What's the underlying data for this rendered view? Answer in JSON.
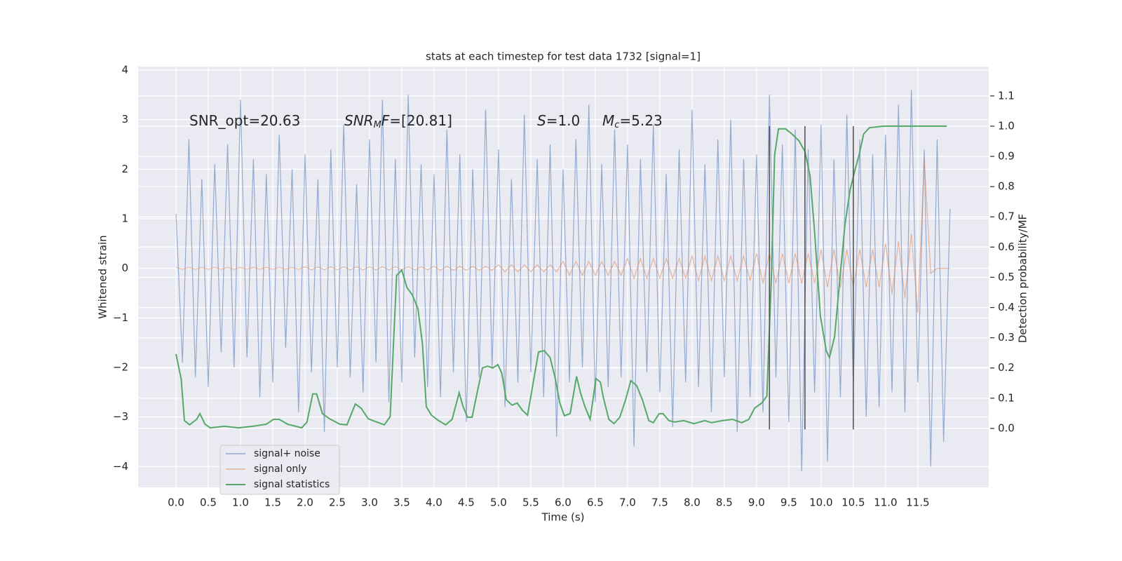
{
  "chart_data": {
    "type": "line",
    "title": "stats at each timestep for test data 1732 [signal=1]",
    "xlabel": "Time (s)",
    "ylabel": "Whitened strain",
    "y2label": "Detection probability/MF",
    "xlim": [
      -0.587,
      12.6
    ],
    "ylim": [
      -4.42,
      4.07
    ],
    "y2lim": [
      -0.195,
      1.197
    ],
    "xticks": [
      {
        "value": 0,
        "label": "0.0"
      },
      0.5,
      {
        "value": 1,
        "label": "1.0"
      },
      1.5,
      {
        "value": 2,
        "label": "2.0"
      },
      2.5,
      {
        "value": 3,
        "label": "3.0"
      },
      3.5,
      {
        "value": 4,
        "label": "4.0"
      },
      4.5,
      {
        "value": 5,
        "label": "5.0"
      },
      5.5,
      {
        "value": 6,
        "label": "6.0"
      },
      6.5,
      {
        "value": 7,
        "label": "7.0"
      },
      7.5,
      {
        "value": 8,
        "label": "8.0"
      },
      8.5,
      {
        "value": 9,
        "label": "9.0"
      },
      9.5,
      {
        "value": 10,
        "label": "10.0"
      },
      10.5,
      {
        "value": 11,
        "label": "11.0"
      },
      11.5
    ],
    "yticks": [
      {
        "value": -4,
        "label": "−4"
      },
      {
        "value": -3,
        "label": "−3"
      },
      {
        "value": -2,
        "label": "−2"
      },
      {
        "value": -1,
        "label": "−1"
      },
      0,
      1,
      2,
      3,
      4
    ],
    "y2ticks": [
      {
        "value": 0,
        "label": "0.0"
      },
      0.1,
      0.2,
      0.3,
      0.4,
      0.5,
      0.6,
      0.7,
      0.8,
      0.9,
      {
        "value": 1,
        "label": "1.0"
      },
      1.1
    ],
    "grid": true,
    "legend": "lower left",
    "x": [
      0,
      0.1,
      0.2,
      0.3,
      0.4,
      0.5,
      0.6,
      0.7,
      0.8,
      0.9,
      1,
      1.1,
      1.2,
      1.3,
      1.4,
      1.5,
      1.6,
      1.7,
      1.8,
      1.9,
      2,
      2.1,
      2.2,
      2.3,
      2.4,
      2.5,
      2.6,
      2.7,
      2.8,
      2.9,
      3,
      3.1,
      3.2,
      3.3,
      3.4,
      3.5,
      3.6,
      3.7,
      3.8,
      3.9,
      4,
      4.1,
      4.2,
      4.3,
      4.4,
      4.5,
      4.6,
      4.7,
      4.8,
      4.9,
      5,
      5.1,
      5.2,
      5.3,
      5.4,
      5.5,
      5.6,
      5.7,
      5.8,
      5.9,
      6,
      6.1,
      6.2,
      6.3,
      6.4,
      6.5,
      6.6,
      6.7,
      6.8,
      6.9,
      7,
      7.1,
      7.2,
      7.3,
      7.4,
      7.5,
      7.6,
      7.7,
      7.8,
      7.9,
      8,
      8.1,
      8.2,
      8.3,
      8.4,
      8.5,
      8.6,
      8.7,
      8.8,
      8.9,
      9,
      9.1,
      9.2,
      9.3,
      9.4,
      9.5,
      9.6,
      9.7,
      9.8,
      9.9,
      10,
      10.1,
      10.2,
      10.3,
      10.4,
      10.5,
      10.6,
      10.7,
      10.8,
      10.9,
      11,
      11.1,
      11.2,
      11.3,
      11.4,
      11.5,
      11.6,
      11.7,
      11.8,
      11.9,
      12
    ],
    "series": [
      {
        "name": "signal+ noise",
        "color": "#4c72b0",
        "values": [
          1.1,
          -1.9,
          2.6,
          -2.2,
          1.8,
          -2.4,
          2.1,
          -1.7,
          2.5,
          -2.0,
          3.4,
          -1.8,
          2.2,
          -2.6,
          1.9,
          -2.3,
          2.7,
          -1.6,
          2.0,
          -2.9,
          2.3,
          -2.1,
          1.8,
          -3.3,
          2.4,
          -2.0,
          2.9,
          -2.2,
          1.7,
          -2.5,
          2.6,
          -1.9,
          3.4,
          -2.7,
          2.2,
          -2.3,
          3.5,
          -1.8,
          2.1,
          -2.4,
          1.9,
          -2.6,
          2.8,
          -2.1,
          2.3,
          -3.1,
          2.0,
          -2.2,
          3.2,
          -2.0,
          2.4,
          -2.8,
          1.8,
          -2.3,
          3.1,
          -2.1,
          2.2,
          -2.6,
          2.5,
          -3.4,
          2.0,
          -2.3,
          2.6,
          -2.0,
          3.3,
          -2.7,
          2.1,
          -2.4,
          2.8,
          -2.2,
          2.5,
          -3.6,
          2.2,
          -2.1,
          2.9,
          -2.5,
          1.9,
          -3.2,
          2.4,
          -2.3,
          3.2,
          -2.4,
          2.1,
          -2.9,
          2.6,
          -2.2,
          3.0,
          -3.3,
          2.2,
          -2.6,
          2.3,
          -2.9,
          3.5,
          -2.2,
          2.5,
          -3.1,
          2.8,
          -4.1,
          2.4,
          -2.5,
          2.9,
          -3.9,
          2.2,
          -2.6,
          3.1,
          -2.4,
          2.6,
          -3.0,
          2.3,
          -2.8,
          2.7,
          -2.5,
          3.3,
          -2.9,
          3.6,
          -2.3,
          2.4,
          -4.0,
          2.6,
          -3.5,
          1.2
        ]
      },
      {
        "name": "signal only",
        "color": "#dd8452",
        "values": [
          0.02,
          -0.02,
          0.02,
          -0.02,
          0.02,
          -0.02,
          0.02,
          -0.02,
          0.02,
          -0.02,
          0.02,
          -0.02,
          0.02,
          -0.02,
          0.02,
          -0.02,
          0.02,
          -0.02,
          0.02,
          -0.02,
          0.03,
          -0.03,
          0.03,
          -0.03,
          0.03,
          -0.03,
          0.03,
          -0.03,
          0.03,
          -0.03,
          0.03,
          -0.03,
          0.03,
          -0.03,
          0.03,
          -0.03,
          0.03,
          -0.03,
          0.03,
          -0.03,
          0.04,
          -0.04,
          0.04,
          -0.04,
          0.04,
          -0.04,
          0.04,
          -0.04,
          0.04,
          -0.04,
          0.07,
          -0.07,
          0.07,
          -0.07,
          0.07,
          -0.07,
          0.07,
          -0.07,
          0.07,
          -0.07,
          0.14,
          -0.14,
          0.14,
          -0.14,
          0.14,
          -0.14,
          0.14,
          -0.14,
          0.14,
          -0.14,
          0.2,
          -0.2,
          0.2,
          -0.2,
          0.2,
          -0.2,
          0.2,
          -0.2,
          0.2,
          -0.2,
          0.25,
          -0.25,
          0.25,
          -0.25,
          0.25,
          -0.25,
          0.25,
          -0.25,
          0.25,
          -0.25,
          0.3,
          -0.3,
          0.3,
          -0.3,
          0.3,
          -0.3,
          0.3,
          -0.3,
          0.3,
          -0.3,
          0.38,
          -0.38,
          0.38,
          -0.38,
          0.38,
          -0.38,
          0.38,
          -0.38,
          0.38,
          -0.38,
          0.5,
          -0.52,
          0.55,
          -0.6,
          0.7,
          -0.9,
          2.2,
          -0.1,
          0,
          0,
          0
        ]
      },
      {
        "name": "signal statistics",
        "color": "#55a868",
        "axis": "y2",
        "x": [
          0,
          0.08,
          0.13,
          0.21,
          0.32,
          0.37,
          0.45,
          0.53,
          0.75,
          0.97,
          1.19,
          1.4,
          1.51,
          1.6,
          1.73,
          1.95,
          2.03,
          2.12,
          2.18,
          2.27,
          2.38,
          2.54,
          2.65,
          2.78,
          2.87,
          2.98,
          3.09,
          3.23,
          3.32,
          3.42,
          3.5,
          3.58,
          3.66,
          3.75,
          3.82,
          3.88,
          3.96,
          4.07,
          4.18,
          4.28,
          4.39,
          4.45,
          4.52,
          4.59,
          4.68,
          4.75,
          4.83,
          4.91,
          4.99,
          5.05,
          5.12,
          5.21,
          5.29,
          5.37,
          5.45,
          5.53,
          5.62,
          5.71,
          5.8,
          5.88,
          5.95,
          6.02,
          6.11,
          6.21,
          6.27,
          6.34,
          6.42,
          6.51,
          6.58,
          6.62,
          6.71,
          6.79,
          6.88,
          6.97,
          7.05,
          7.14,
          7.23,
          7.33,
          7.4,
          7.49,
          7.55,
          7.64,
          7.73,
          7.87,
          8.03,
          8.2,
          8.3,
          8.47,
          8.63,
          8.77,
          8.88,
          8.97,
          9.08,
          9.16,
          9.23,
          9.28,
          9.34,
          9.45,
          9.55,
          9.66,
          9.75,
          9.83,
          9.9,
          9.99,
          10.08,
          10.13,
          10.21,
          10.29,
          10.37,
          10.45,
          10.53,
          10.59,
          10.66,
          10.75,
          10.97,
          11.95
        ],
        "values": [
          0.246,
          0.164,
          0.026,
          0.012,
          0.03,
          0.049,
          0.014,
          0.002,
          0.007,
          0.002,
          0.007,
          0.014,
          0.03,
          0.03,
          0.014,
          0.002,
          0.021,
          0.114,
          0.114,
          0.049,
          0.032,
          0.014,
          0.012,
          0.081,
          0.067,
          0.032,
          0.023,
          0.012,
          0.039,
          0.506,
          0.524,
          0.466,
          0.443,
          0.397,
          0.281,
          0.072,
          0.044,
          0.026,
          0.012,
          0.03,
          0.118,
          0.072,
          0.037,
          0.037,
          0.13,
          0.2,
          0.206,
          0.2,
          0.211,
          0.183,
          0.095,
          0.077,
          0.084,
          0.06,
          0.044,
          0.142,
          0.253,
          0.257,
          0.234,
          0.165,
          0.084,
          0.042,
          0.049,
          0.172,
          0.118,
          0.072,
          0.03,
          0.165,
          0.153,
          0.107,
          0.03,
          0.016,
          0.037,
          0.095,
          0.158,
          0.142,
          0.095,
          0.026,
          0.019,
          0.049,
          0.049,
          0.026,
          0.021,
          0.026,
          0.016,
          0.026,
          0.019,
          0.026,
          0.03,
          0.019,
          0.03,
          0.067,
          0.084,
          0.107,
          0.5,
          0.905,
          0.991,
          0.991,
          0.974,
          0.951,
          0.916,
          0.835,
          0.65,
          0.371,
          0.258,
          0.234,
          0.304,
          0.49,
          0.673,
          0.789,
          0.858,
          0.905,
          0.974,
          0.995,
          1.0,
          1.0
        ]
      }
    ],
    "vlines": {
      "x": [
        9.2,
        9.75,
        10.5
      ],
      "ymin": -3.25,
      "ymax": 2.87,
      "color": "#555555"
    },
    "annotations": [
      {
        "parts": [
          "SNR_opt=20.63"
        ]
      },
      {
        "parts": [
          "SNR",
          "M",
          "F",
          "=[20.81]"
        ]
      },
      {
        "parts": [
          "S",
          "=1.0"
        ]
      },
      {
        "parts": [
          "M",
          "c",
          "=5.23"
        ]
      }
    ]
  }
}
